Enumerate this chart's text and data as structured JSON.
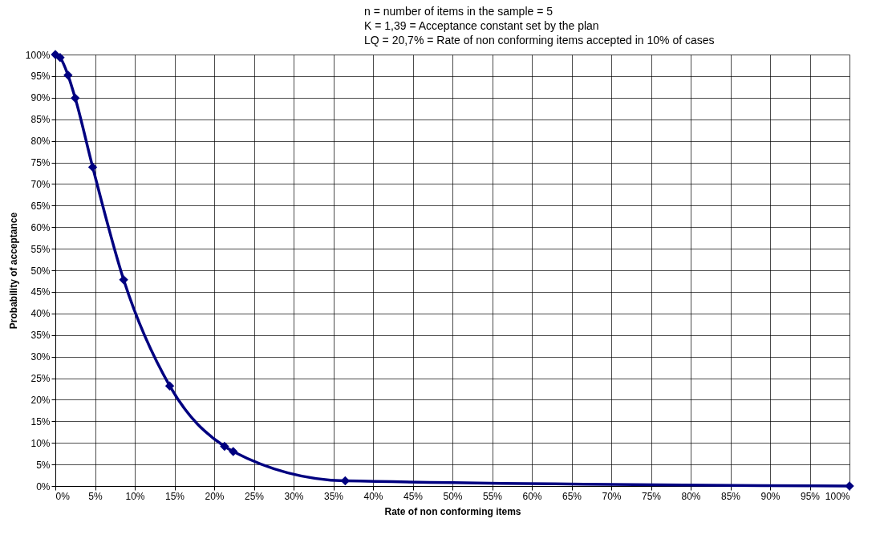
{
  "chart_data": {
    "type": "line",
    "annotations": [
      "n = number of items in the sample = 5",
      "K = 1,39 = Acceptance constant set by the plan",
      "LQ = 20,7% = Rate of non conforming items accepted in 10% of cases"
    ],
    "xlabel": "Rate of non conforming items",
    "ylabel": "Probability of acceptance",
    "series": [
      {
        "color": "#000080",
        "x": [
          0,
          0.6,
          1.6,
          2.5,
          4.7,
          8.6,
          14.4,
          21.3,
          22.4,
          36.5,
          100
        ],
        "values": [
          100,
          99.3,
          95.2,
          89.9,
          73.9,
          47.8,
          23.2,
          9.2,
          8.0,
          1.2,
          0
        ]
      }
    ],
    "xlim": [
      0,
      100
    ],
    "ylim": [
      0,
      100
    ],
    "xticks": [
      {
        "value": 0,
        "label": "0%"
      },
      {
        "value": 5,
        "label": "5%"
      },
      {
        "value": 10,
        "label": "10%"
      },
      {
        "value": 15,
        "label": "15%"
      },
      {
        "value": 20,
        "label": "20%"
      },
      {
        "value": 25,
        "label": "25%"
      },
      {
        "value": 30,
        "label": "30%"
      },
      {
        "value": 35,
        "label": "35%"
      },
      {
        "value": 40,
        "label": "40%"
      },
      {
        "value": 45,
        "label": "45%"
      },
      {
        "value": 50,
        "label": "50%"
      },
      {
        "value": 55,
        "label": "55%"
      },
      {
        "value": 60,
        "label": "60%"
      },
      {
        "value": 65,
        "label": "65%"
      },
      {
        "value": 70,
        "label": "70%"
      },
      {
        "value": 75,
        "label": "75%"
      },
      {
        "value": 80,
        "label": "80%"
      },
      {
        "value": 85,
        "label": "85%"
      },
      {
        "value": 90,
        "label": "90%"
      },
      {
        "value": 95,
        "label": "95%"
      },
      {
        "value": 100,
        "label": "100%"
      }
    ],
    "yticks": [
      {
        "value": 0,
        "label": "0%"
      },
      {
        "value": 5,
        "label": "5%"
      },
      {
        "value": 10,
        "label": "10%"
      },
      {
        "value": 15,
        "label": "15%"
      },
      {
        "value": 20,
        "label": "20%"
      },
      {
        "value": 25,
        "label": "25%"
      },
      {
        "value": 30,
        "label": "30%"
      },
      {
        "value": 35,
        "label": "35%"
      },
      {
        "value": 40,
        "label": "40%"
      },
      {
        "value": 45,
        "label": "45%"
      },
      {
        "value": 50,
        "label": "50%"
      },
      {
        "value": 55,
        "label": "55%"
      },
      {
        "value": 60,
        "label": "60%"
      },
      {
        "value": 65,
        "label": "65%"
      },
      {
        "value": 70,
        "label": "70%"
      },
      {
        "value": 75,
        "label": "75%"
      },
      {
        "value": 80,
        "label": "80%"
      },
      {
        "value": 85,
        "label": "85%"
      },
      {
        "value": 90,
        "label": "90%"
      },
      {
        "value": 95,
        "label": "95%"
      },
      {
        "value": 100,
        "label": "100%"
      }
    ],
    "grid": true,
    "marker": "diamond",
    "line_style": "solid",
    "legend": false
  }
}
